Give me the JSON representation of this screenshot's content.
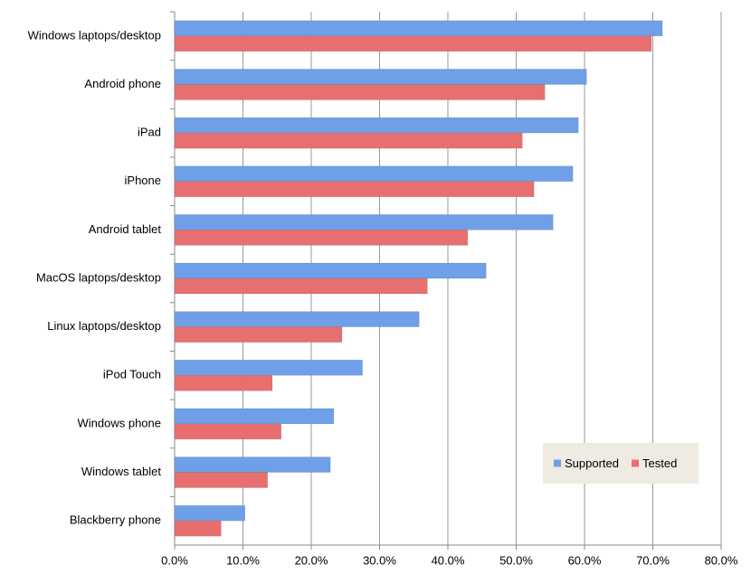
{
  "chart_data": {
    "type": "hbar",
    "categories": [
      "Windows laptops/desktop",
      "Android phone",
      "iPad",
      "iPhone",
      "Android tablet",
      "MacOS laptops/desktop",
      "Linux laptops/desktop",
      "iPod Touch",
      "Windows phone",
      "Windows tablet",
      "Blackberry phone"
    ],
    "series": [
      {
        "name": "Supported",
        "color": "#6f9fe6",
        "values": [
          71.4,
          60.3,
          59.1,
          58.3,
          55.4,
          45.6,
          35.8,
          27.5,
          23.3,
          22.8,
          10.3
        ]
      },
      {
        "name": "Tested",
        "color": "#e86f70",
        "values": [
          69.8,
          54.2,
          50.9,
          52.6,
          42.9,
          37.0,
          24.5,
          14.3,
          15.6,
          13.6,
          6.8
        ]
      }
    ],
    "xlim": [
      0,
      80
    ],
    "xticks": [
      {
        "value": 0,
        "label": "0.0%"
      },
      {
        "value": 10,
        "label": "10.0%"
      },
      {
        "value": 20,
        "label": "20.0%"
      },
      {
        "value": 30,
        "label": "30.0%"
      },
      {
        "value": 40,
        "label": "40.0%"
      },
      {
        "value": 50,
        "label": "50.0%"
      },
      {
        "value": 60,
        "label": "60.0%"
      },
      {
        "value": 70,
        "label": "70.0%"
      },
      {
        "value": 80,
        "label": "80.0%"
      }
    ],
    "grid": true,
    "legend": "lower right"
  }
}
